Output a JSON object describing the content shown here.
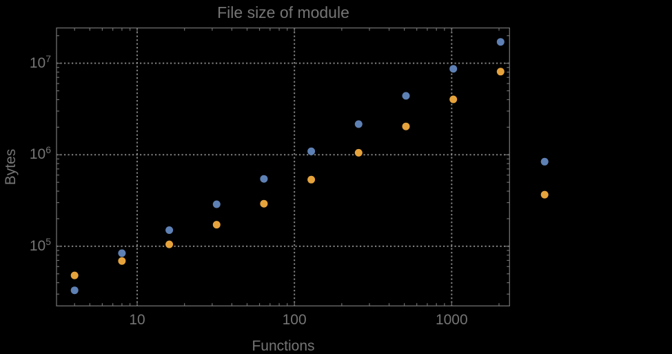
{
  "title": "File size of module",
  "xlabel": "Functions",
  "ylabel": "Bytes",
  "colors": {
    "background": "#000000",
    "text": "#757575",
    "frame": "#6f6f6f",
    "gridlines": "#989898",
    "series_blue": "#5E81B5",
    "series_orange": "#E6A33C"
  },
  "x_ticks": [
    {
      "label": "10",
      "value": 10
    },
    {
      "label": "100",
      "value": 100
    },
    {
      "label": "1000",
      "value": 1000
    }
  ],
  "y_ticks": [
    {
      "base": "10",
      "exp": "7",
      "value": 10000000
    },
    {
      "base": "10",
      "exp": "6",
      "value": 1000000
    },
    {
      "base": "10",
      "exp": "5",
      "value": 100000
    }
  ],
  "chart_data": {
    "type": "scatter",
    "title": "File size of module",
    "xlabel": "Functions",
    "ylabel": "Bytes",
    "xlog": true,
    "ylog": true,
    "grid": "dotted",
    "legend": null,
    "xlim": [
      3.07,
      2334
    ],
    "ylim": [
      22300,
      24300000
    ],
    "plot_range_clipping": false,
    "x": [
      4,
      8,
      16,
      32,
      64,
      128,
      256,
      512,
      1024,
      2048,
      3900
    ],
    "series": [
      {
        "name": "blue",
        "color": "#5E81B5",
        "values": [
          33000,
          84000,
          150000,
          288000,
          545000,
          1090000,
          2160000,
          4400000,
          8700000,
          17100000,
          840000
        ]
      },
      {
        "name": "orange",
        "color": "#E6A33C",
        "values": [
          48000,
          69000,
          105000,
          172000,
          292000,
          535000,
          1050000,
          2040000,
          4030000,
          8100000,
          366000
        ]
      }
    ]
  }
}
